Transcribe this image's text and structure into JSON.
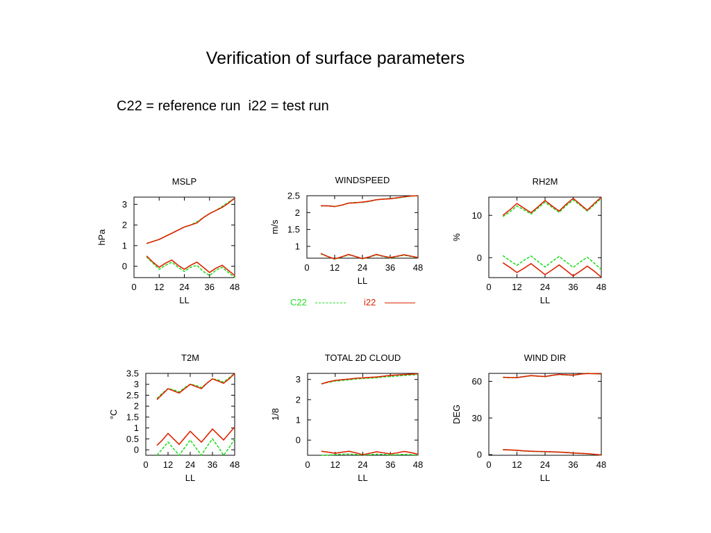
{
  "page": {
    "title": "Verification of surface parameters",
    "subtitle": "C22 = reference run  i22 = test run"
  },
  "legend": {
    "items": [
      {
        "name": "C22",
        "color": "#22dd22",
        "style": "dashed"
      },
      {
        "name": "i22",
        "color": "#dd2200",
        "style": "solid"
      }
    ]
  },
  "chart_data": [
    {
      "type": "line",
      "title": "MSLP",
      "xlabel": "LL",
      "ylabel": "hPa",
      "xlim": [
        0,
        48
      ],
      "ylim": [
        -0.55,
        3.35
      ],
      "xticks": [
        0,
        12,
        24,
        36,
        48
      ],
      "yticks": [
        0,
        1,
        2,
        3
      ],
      "x": [
        6,
        9,
        12,
        15,
        18,
        21,
        24,
        27,
        30,
        33,
        36,
        39,
        42,
        45,
        48
      ],
      "series": [
        {
          "name": "C22",
          "group": "upper",
          "values": [
            1.1,
            1.2,
            1.3,
            1.45,
            1.6,
            1.75,
            1.9,
            2.0,
            2.15,
            2.35,
            2.55,
            2.7,
            2.9,
            3.1,
            3.3
          ]
        },
        {
          "name": "i22",
          "group": "upper",
          "values": [
            1.1,
            1.2,
            1.3,
            1.45,
            1.6,
            1.75,
            1.9,
            2.0,
            2.1,
            2.35,
            2.55,
            2.7,
            2.85,
            3.05,
            3.3
          ]
        },
        {
          "name": "C22",
          "group": "lower",
          "values": [
            0.45,
            0.15,
            -0.15,
            0.05,
            0.2,
            -0.05,
            -0.25,
            -0.05,
            0.05,
            -0.25,
            -0.45,
            -0.2,
            -0.05,
            -0.3,
            -0.55
          ]
        },
        {
          "name": "i22",
          "group": "lower",
          "values": [
            0.5,
            0.2,
            -0.05,
            0.15,
            0.3,
            0.05,
            -0.15,
            0.05,
            0.2,
            -0.05,
            -0.3,
            -0.1,
            0.05,
            -0.2,
            -0.45
          ]
        }
      ]
    },
    {
      "type": "line",
      "title": "WINDSPEED",
      "xlabel": "LL",
      "ylabel": "m/s",
      "xlim": [
        0,
        48
      ],
      "ylim": [
        0.65,
        2.5
      ],
      "xticks": [
        0,
        12,
        24,
        36,
        48
      ],
      "yticks": [
        1,
        1.5,
        2,
        2.5
      ],
      "x": [
        6,
        9,
        12,
        15,
        18,
        21,
        24,
        27,
        30,
        33,
        36,
        39,
        42,
        45,
        48
      ],
      "series": [
        {
          "name": "C22",
          "group": "upper",
          "values": [
            2.2,
            2.2,
            2.18,
            2.22,
            2.28,
            2.3,
            2.3,
            2.33,
            2.38,
            2.4,
            2.42,
            2.43,
            2.46,
            2.49,
            2.5
          ]
        },
        {
          "name": "i22",
          "group": "upper",
          "values": [
            2.2,
            2.2,
            2.18,
            2.22,
            2.28,
            2.29,
            2.31,
            2.34,
            2.38,
            2.4,
            2.41,
            2.44,
            2.47,
            2.49,
            2.5
          ]
        },
        {
          "name": "C22",
          "group": "lower",
          "values": [
            0.78,
            0.7,
            0.62,
            0.68,
            0.75,
            0.7,
            0.63,
            0.68,
            0.75,
            0.7,
            0.66,
            0.7,
            0.74,
            0.7,
            0.66
          ]
        },
        {
          "name": "i22",
          "group": "lower",
          "values": [
            0.79,
            0.7,
            0.63,
            0.69,
            0.76,
            0.7,
            0.64,
            0.69,
            0.76,
            0.71,
            0.67,
            0.71,
            0.75,
            0.71,
            0.67
          ]
        }
      ]
    },
    {
      "type": "line",
      "title": "RH2M",
      "xlabel": "LL",
      "ylabel": "%",
      "xlim": [
        0,
        48
      ],
      "ylim": [
        -4.7,
        14.3
      ],
      "xticks": [
        0,
        12,
        24,
        36,
        48
      ],
      "yticks": [
        0,
        10
      ],
      "x": [
        6,
        9,
        12,
        15,
        18,
        21,
        24,
        27,
        30,
        33,
        36,
        39,
        42,
        45,
        48
      ],
      "series": [
        {
          "name": "C22",
          "group": "upper",
          "values": [
            9.7,
            10.8,
            12.2,
            11.3,
            10.3,
            11.7,
            13.1,
            11.9,
            10.7,
            12.3,
            13.6,
            12.4,
            11.0,
            12.5,
            14.0
          ]
        },
        {
          "name": "i22",
          "group": "upper",
          "values": [
            10.0,
            11.3,
            12.8,
            11.7,
            10.6,
            12.0,
            13.5,
            12.2,
            11.0,
            12.6,
            14.0,
            12.6,
            11.2,
            12.8,
            14.3
          ]
        },
        {
          "name": "C22",
          "group": "lower",
          "values": [
            0.5,
            -0.7,
            -1.8,
            -0.6,
            0.4,
            -0.9,
            -2.2,
            -0.9,
            0.3,
            -1.0,
            -2.3,
            -1.0,
            0.1,
            -1.3,
            -2.8
          ]
        },
        {
          "name": "i22",
          "group": "lower",
          "values": [
            -1.2,
            -2.3,
            -3.5,
            -2.5,
            -1.4,
            -2.7,
            -4.0,
            -2.9,
            -1.7,
            -3.0,
            -4.3,
            -3.2,
            -2.0,
            -3.2,
            -4.6
          ]
        }
      ]
    },
    {
      "type": "line",
      "title": "T2M",
      "xlabel": "LL",
      "ylabel": "°C",
      "xlim": [
        0,
        48
      ],
      "ylim": [
        -0.25,
        3.5
      ],
      "xticks": [
        0,
        12,
        24,
        36,
        48
      ],
      "yticks": [
        0,
        0.5,
        1,
        1.5,
        2,
        2.5,
        3,
        3.5
      ],
      "x": [
        6,
        9,
        12,
        15,
        18,
        21,
        24,
        27,
        30,
        33,
        36,
        39,
        42,
        45,
        48
      ],
      "series": [
        {
          "name": "C22",
          "group": "upper",
          "values": [
            2.35,
            2.6,
            2.8,
            2.75,
            2.65,
            2.85,
            3.0,
            2.95,
            2.85,
            3.05,
            3.25,
            3.2,
            3.1,
            3.3,
            3.5
          ]
        },
        {
          "name": "i22",
          "group": "upper",
          "values": [
            2.3,
            2.55,
            2.8,
            2.7,
            2.6,
            2.8,
            3.0,
            2.9,
            2.8,
            3.05,
            3.25,
            3.15,
            3.05,
            3.25,
            3.5
          ]
        },
        {
          "name": "C22",
          "group": "lower",
          "values": [
            -0.25,
            0.05,
            0.35,
            0.05,
            -0.25,
            0.1,
            0.45,
            0.1,
            -0.25,
            0.15,
            0.5,
            0.15,
            -0.25,
            0.1,
            0.5
          ]
        },
        {
          "name": "i22",
          "group": "lower",
          "values": [
            0.2,
            0.45,
            0.75,
            0.5,
            0.25,
            0.55,
            0.85,
            0.6,
            0.35,
            0.65,
            0.95,
            0.7,
            0.45,
            0.75,
            1.05
          ]
        }
      ]
    },
    {
      "type": "line",
      "title": "TOTAL 2D CLOUD",
      "xlabel": "LL",
      "ylabel": "1/8",
      "xlim": [
        0,
        48
      ],
      "ylim": [
        -0.75,
        3.3
      ],
      "xticks": [
        0,
        12,
        24,
        36,
        48
      ],
      "yticks": [
        0,
        1,
        2,
        3
      ],
      "x": [
        6,
        9,
        12,
        15,
        18,
        21,
        24,
        27,
        30,
        33,
        36,
        39,
        42,
        45,
        48
      ],
      "series": [
        {
          "name": "C22",
          "group": "upper",
          "values": [
            2.78,
            2.86,
            2.92,
            2.95,
            2.98,
            3.02,
            3.05,
            3.06,
            3.08,
            3.12,
            3.15,
            3.17,
            3.2,
            3.22,
            3.24
          ]
        },
        {
          "name": "i22",
          "group": "upper",
          "values": [
            2.78,
            2.88,
            2.95,
            2.99,
            3.02,
            3.06,
            3.08,
            3.1,
            3.12,
            3.16,
            3.2,
            3.22,
            3.24,
            3.26,
            3.28
          ]
        },
        {
          "name": "C22",
          "group": "lower",
          "values": [
            -0.75,
            -0.74,
            -0.72,
            -0.7,
            -0.69,
            -0.71,
            -0.73,
            -0.72,
            -0.7,
            -0.71,
            -0.73,
            -0.72,
            -0.71,
            -0.72,
            -0.74
          ]
        },
        {
          "name": "i22",
          "group": "lower",
          "values": [
            -0.55,
            -0.6,
            -0.65,
            -0.6,
            -0.55,
            -0.63,
            -0.72,
            -0.65,
            -0.58,
            -0.63,
            -0.68,
            -0.63,
            -0.56,
            -0.62,
            -0.7
          ]
        }
      ]
    },
    {
      "type": "line",
      "title": "WIND DIR",
      "xlabel": "LL",
      "ylabel": "DEG",
      "xlim": [
        0,
        48
      ],
      "ylim": [
        -0.5,
        66.5
      ],
      "xticks": [
        0,
        12,
        24,
        36,
        48
      ],
      "yticks": [
        0,
        30,
        60
      ],
      "x": [
        6,
        9,
        12,
        15,
        18,
        21,
        24,
        27,
        30,
        33,
        36,
        39,
        42,
        45,
        48
      ],
      "series": [
        {
          "name": "C22",
          "group": "upper",
          "values": [
            63.2,
            63.0,
            63.1,
            63.8,
            64.6,
            64.2,
            63.8,
            64.8,
            65.6,
            65.2,
            64.9,
            65.8,
            66.5,
            66.2,
            66.0
          ]
        },
        {
          "name": "i22",
          "group": "upper",
          "values": [
            63.3,
            63.1,
            63.0,
            63.9,
            64.7,
            64.3,
            63.9,
            64.9,
            65.7,
            65.3,
            65.0,
            65.9,
            66.4,
            66.3,
            66.1
          ]
        },
        {
          "name": "C22",
          "group": "lower",
          "values": [
            4.0,
            3.8,
            3.5,
            3.0,
            2.7,
            2.5,
            2.4,
            2.2,
            2.0,
            1.7,
            1.3,
            1.0,
            0.7,
            0.2,
            -0.4
          ]
        },
        {
          "name": "i22",
          "group": "lower",
          "values": [
            4.1,
            3.9,
            3.6,
            3.1,
            2.8,
            2.6,
            2.5,
            2.3,
            2.1,
            1.8,
            1.4,
            1.1,
            0.8,
            0.3,
            -0.3
          ]
        }
      ]
    }
  ]
}
